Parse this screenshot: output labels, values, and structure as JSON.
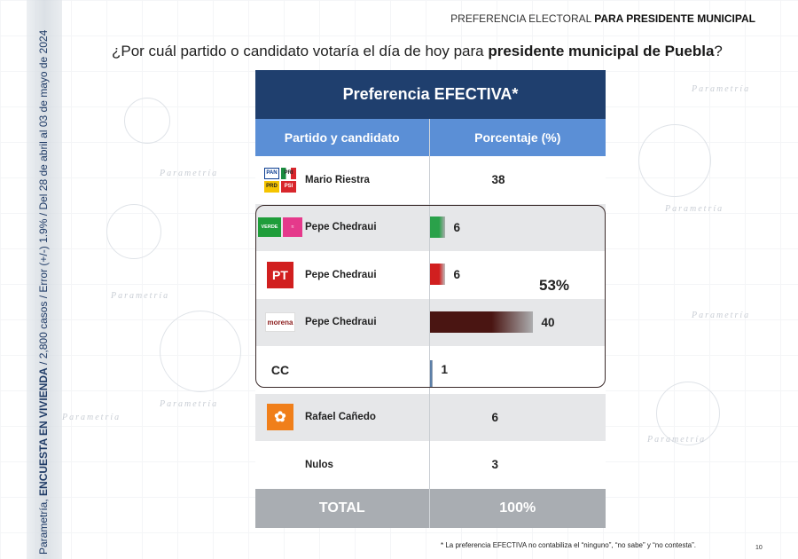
{
  "header": {
    "title_prefix": "PREFERENCIA ELECTORAL ",
    "title_bold": "PARA PRESIDENTE MUNICIPAL"
  },
  "question": {
    "prefix": "¿Por cuál partido o candidato votaría el día de hoy para ",
    "bold": "presidente municipal de Puebla",
    "suffix": "?"
  },
  "side": {
    "prefix": "Parametría, ",
    "bold": "ENCUESTA EN VIVIENDA",
    "suffix": " / 2,800 casos / Error (+/-) 1.9% / Del 28 de abril al 03 de mayo de 2024"
  },
  "watermark_text": "Parametría",
  "chart_data": {
    "type": "table",
    "title": "Preferencia EFECTIVA*",
    "columns": [
      "Partido y candidato",
      "Porcentaje (%)"
    ],
    "rows": [
      {
        "party": "PAN-PRI-PRD-PSI",
        "logo": "pan-pri-prd-psi-logo",
        "candidate": "Mario Riestra",
        "value": 38,
        "bar_color": "",
        "shade": "white"
      },
      {
        "party": "PVEM-Nueva Alianza",
        "logo": "verde-nueva-alianza-logo",
        "candidate": "Pepe Chedraui",
        "value": 6,
        "bar_color": "#2aa14a",
        "shade": "gray"
      },
      {
        "party": "PT",
        "logo": "pt-logo",
        "candidate": "Pepe Chedraui",
        "value": 6,
        "bar_color": "#d11f1f",
        "shade": "white"
      },
      {
        "party": "Morena",
        "logo": "morena-logo",
        "candidate": "Pepe Chedraui",
        "value": 40,
        "bar_color": "#4a1512",
        "shade": "gray"
      },
      {
        "party": "CC",
        "logo": "cc-logo",
        "candidate": "",
        "value": 1,
        "bar_color": "#5c7fa8",
        "shade": "white"
      },
      {
        "party": "Movimiento Ciudadano",
        "logo": "mc-logo",
        "candidate": "Rafael Cañedo",
        "value": 6,
        "bar_color": "",
        "shade": "gray"
      },
      {
        "party": "Nulos",
        "logo": "",
        "candidate": "Nulos",
        "value": 3,
        "bar_color": "",
        "shade": "white"
      }
    ],
    "bracket_total_label": "53%",
    "total_label": "TOTAL",
    "total_value": "100%"
  },
  "logos": {
    "pan": "PAN",
    "pri": "PRI",
    "prd": "PRD",
    "psi": "PSI",
    "verde": "VERDE",
    "pt": "PT",
    "morena": "morena",
    "cc": "CC"
  },
  "colors": {
    "title_bg": "#1f3f6e",
    "header_bg": "#5b8fd6",
    "total_bg": "#a9adb2",
    "morena_bar": "#4a1512",
    "pt_bar": "#d11f1f",
    "verde_bar": "#2aa14a"
  },
  "footnote": "* La preferencia EFECTIVA no contabiliza el “ninguno”, “no sabe” y “no contesta”.",
  "page_number": "10"
}
